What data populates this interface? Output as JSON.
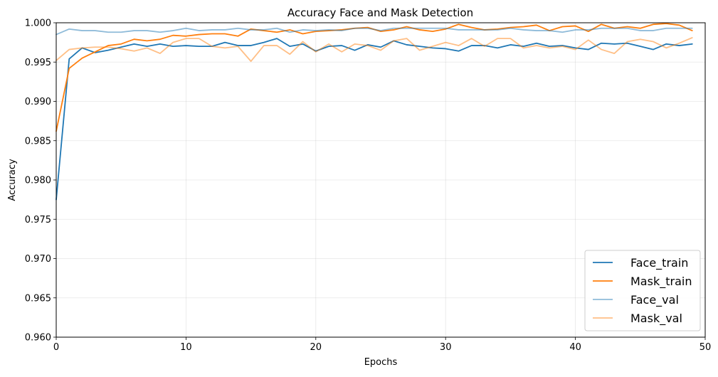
{
  "chart_data": {
    "type": "line",
    "title": "Accuracy Face and Mask Detection",
    "xlabel": "Epochs",
    "ylabel": "Accuracy",
    "xlim": [
      0,
      50
    ],
    "ylim": [
      0.96,
      1.0
    ],
    "xticks": [
      "0",
      "10",
      "20",
      "30",
      "40",
      "50"
    ],
    "yticks": [
      "0.960",
      "0.965",
      "0.970",
      "0.975",
      "0.980",
      "0.985",
      "0.990",
      "0.995",
      "1.000"
    ],
    "grid": true,
    "legend_position": "lower-right",
    "x": [
      0,
      1,
      2,
      3,
      4,
      5,
      6,
      7,
      8,
      9,
      10,
      11,
      12,
      13,
      14,
      15,
      16,
      17,
      18,
      19,
      20,
      21,
      22,
      23,
      24,
      25,
      26,
      27,
      28,
      29,
      30,
      31,
      32,
      33,
      34,
      35,
      36,
      37,
      38,
      39,
      40,
      41,
      42,
      43,
      44,
      45,
      46,
      47,
      48,
      49
    ],
    "series": [
      {
        "name": "Face_train",
        "color": "#1f77b4",
        "opacity": 1.0,
        "values": [
          0.9775,
          0.9954,
          0.9968,
          0.9962,
          0.9965,
          0.9969,
          0.9973,
          0.997,
          0.9973,
          0.997,
          0.9971,
          0.997,
          0.997,
          0.9975,
          0.9971,
          0.9971,
          0.9975,
          0.998,
          0.997,
          0.9973,
          0.9964,
          0.997,
          0.9971,
          0.9965,
          0.9972,
          0.9969,
          0.9977,
          0.9972,
          0.997,
          0.9968,
          0.9967,
          0.9964,
          0.9971,
          0.9971,
          0.9968,
          0.9972,
          0.997,
          0.9974,
          0.997,
          0.9971,
          0.9968,
          0.9966,
          0.9974,
          0.9973,
          0.9974,
          0.997,
          0.9966,
          0.9973,
          0.9971,
          0.9973
        ]
      },
      {
        "name": "Mask_train",
        "color": "#ff7f0e",
        "opacity": 1.0,
        "values": [
          0.9862,
          0.9942,
          0.9955,
          0.9963,
          0.9971,
          0.9973,
          0.9979,
          0.9977,
          0.9979,
          0.9984,
          0.9983,
          0.9985,
          0.9986,
          0.9986,
          0.9983,
          0.9992,
          0.999,
          0.9988,
          0.9991,
          0.9986,
          0.9989,
          0.999,
          0.9991,
          0.9993,
          0.9994,
          0.9989,
          0.9991,
          0.9995,
          0.9991,
          0.9989,
          0.9992,
          0.9998,
          0.9994,
          0.9991,
          0.9992,
          0.9994,
          0.9995,
          0.9997,
          0.999,
          0.9995,
          0.9996,
          0.9989,
          0.9998,
          0.9993,
          0.9995,
          0.9993,
          0.9998,
          0.9999,
          0.9997,
          0.999
        ]
      },
      {
        "name": "Face_val",
        "color": "#1f77b4",
        "opacity": 0.5,
        "values": [
          0.9985,
          0.9992,
          0.999,
          0.999,
          0.9988,
          0.9988,
          0.999,
          0.999,
          0.9988,
          0.999,
          0.9993,
          0.999,
          0.9991,
          0.9991,
          0.9993,
          0.9991,
          0.9991,
          0.9993,
          0.9988,
          0.9991,
          0.999,
          0.9991,
          0.999,
          0.9993,
          0.9993,
          0.999,
          0.9993,
          0.9993,
          0.9993,
          0.9993,
          0.9993,
          0.9991,
          0.9991,
          0.9991,
          0.9991,
          0.9993,
          0.9991,
          0.999,
          0.999,
          0.9988,
          0.9991,
          0.9991,
          0.9993,
          0.9993,
          0.9993,
          0.999,
          0.999,
          0.9993,
          0.9993,
          0.9993
        ]
      },
      {
        "name": "Mask_val",
        "color": "#ff7f0e",
        "opacity": 0.5,
        "values": [
          0.9952,
          0.9966,
          0.9968,
          0.9969,
          0.9969,
          0.9967,
          0.9964,
          0.9968,
          0.9961,
          0.9975,
          0.998,
          0.998,
          0.997,
          0.9968,
          0.997,
          0.9951,
          0.9971,
          0.9971,
          0.996,
          0.9976,
          0.9963,
          0.9973,
          0.9963,
          0.9973,
          0.9971,
          0.9965,
          0.9977,
          0.998,
          0.9965,
          0.997,
          0.9975,
          0.9971,
          0.998,
          0.997,
          0.998,
          0.998,
          0.9968,
          0.9971,
          0.9968,
          0.997,
          0.9966,
          0.9978,
          0.9966,
          0.9961,
          0.9976,
          0.9979,
          0.9976,
          0.9968,
          0.9974,
          0.9981
        ]
      }
    ]
  }
}
